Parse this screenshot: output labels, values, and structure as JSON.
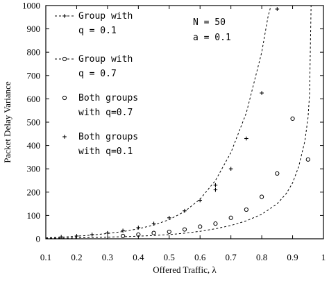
{
  "chart_data": {
    "type": "line",
    "xlabel": "Offered Traffic, λ",
    "ylabel": "Packet Delay Variance",
    "xlim": [
      0.1,
      1
    ],
    "ylim": [
      0,
      1000
    ],
    "x_ticks": [
      0.1,
      0.2,
      0.3,
      0.4,
      0.5,
      0.6,
      0.7,
      0.8,
      0.9,
      1
    ],
    "x_tick_labels": [
      "0.1",
      "0.2",
      "0.3",
      "0.4",
      "0.5",
      "0.6",
      "0.7",
      "0.8",
      "0.9",
      "1"
    ],
    "y_ticks": [
      0,
      100,
      200,
      300,
      400,
      500,
      600,
      700,
      800,
      900,
      1000
    ],
    "y_tick_labels": [
      "0",
      "100",
      "200",
      "300",
      "400",
      "500",
      "600",
      "700",
      "800",
      "900",
      "1000"
    ],
    "grid": false,
    "legend_position": "top-left",
    "annotations": [
      "N = 50",
      "a = 0.1"
    ],
    "series": [
      {
        "name": "Group with q = 0.1",
        "legend_lines": [
          "Group with",
          "q = 0.1"
        ],
        "style": "dashed",
        "marker": "plus",
        "x": [
          0.1,
          0.15,
          0.2,
          0.25,
          0.3,
          0.35,
          0.4,
          0.45,
          0.5,
          0.55,
          0.6,
          0.65,
          0.7,
          0.75,
          0.8,
          0.82,
          0.83
        ],
        "y": [
          4,
          7,
          11,
          16,
          23,
          31,
          43,
          59,
          82,
          117,
          170,
          250,
          370,
          540,
          800,
          950,
          1000
        ]
      },
      {
        "name": "Group with q = 0.7",
        "legend_lines": [
          "Group with",
          "q = 0.7"
        ],
        "style": "dashed",
        "marker": "circle",
        "x": [
          0.1,
          0.2,
          0.3,
          0.4,
          0.5,
          0.55,
          0.6,
          0.65,
          0.7,
          0.75,
          0.8,
          0.85,
          0.88,
          0.9,
          0.92,
          0.94,
          0.95,
          0.955,
          0.96
        ],
        "y": [
          2,
          4,
          7,
          11,
          18,
          24,
          32,
          43,
          57,
          77,
          105,
          150,
          195,
          240,
          310,
          420,
          520,
          620,
          1000
        ]
      },
      {
        "name": "Both groups with q=0.7",
        "legend_lines": [
          "Both groups",
          "with q=0.7"
        ],
        "style": "none",
        "marker": "circle",
        "x": [
          0.35,
          0.4,
          0.45,
          0.5,
          0.55,
          0.6,
          0.65,
          0.7,
          0.75,
          0.8,
          0.85,
          0.9,
          0.95
        ],
        "y": [
          12,
          18,
          25,
          30,
          40,
          52,
          65,
          90,
          125,
          180,
          280,
          515,
          340
        ]
      },
      {
        "name": "Both groups with q=0.1",
        "legend_lines": [
          "Both groups",
          "with q=0.1"
        ],
        "style": "none",
        "marker": "plus",
        "x": [
          0.15,
          0.2,
          0.25,
          0.3,
          0.35,
          0.4,
          0.45,
          0.5,
          0.55,
          0.6,
          0.65,
          0.65,
          0.7,
          0.75,
          0.8,
          0.85
        ],
        "y": [
          8,
          12,
          18,
          25,
          35,
          48,
          65,
          90,
          120,
          165,
          230,
          210,
          300,
          430,
          625,
          985
        ]
      }
    ]
  }
}
